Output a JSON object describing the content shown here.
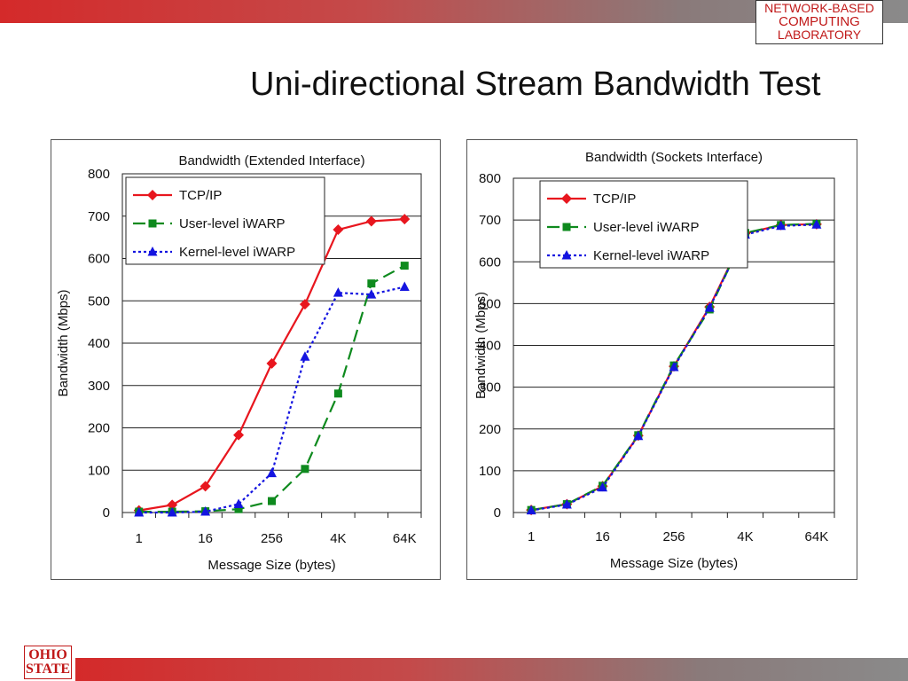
{
  "slide": {
    "title": "Uni-directional Stream Bandwidth Test",
    "lab_logo": [
      "NETWORK-BASED",
      "COMPUTING",
      "LABORATORY"
    ],
    "university_logo": [
      "OHIO",
      "STATE"
    ],
    "colors": {
      "band": "#c43a3a",
      "logo_red": "#c01818"
    }
  },
  "chart_data": [
    {
      "type": "line",
      "title": "Bandwidth (Extended Interface)",
      "xlabel": "Message Size (bytes)",
      "ylabel": "Bandwidth (Mbps)",
      "categories": [
        "1",
        "4",
        "16",
        "64",
        "256",
        "1K",
        "4K",
        "16K",
        "64K"
      ],
      "x_tick_labels": [
        "1",
        "",
        "16",
        "",
        "256",
        "",
        "4K",
        "",
        "64K"
      ],
      "y_ticks": [
        0,
        100,
        200,
        300,
        400,
        500,
        600,
        700,
        800
      ],
      "ylim": [
        0,
        800
      ],
      "grid": "horizontal",
      "legend": "top-left",
      "series": [
        {
          "name": "TCP/IP",
          "color": "#e8161e",
          "dash": "solid",
          "marker": "diamond",
          "values": [
            5,
            18,
            62,
            183,
            352,
            492,
            668,
            688,
            693
          ]
        },
        {
          "name": "User-level iWARP",
          "color": "#0e8a1e",
          "dash": "long-dash",
          "marker": "square",
          "values": [
            2,
            2,
            3,
            8,
            27,
            103,
            281,
            541,
            583
          ]
        },
        {
          "name": "Kernel-level iWARP",
          "color": "#1414e0",
          "dash": "dotted",
          "marker": "triangle",
          "values": [
            0,
            0,
            2,
            20,
            93,
            368,
            519,
            515,
            533
          ]
        }
      ]
    },
    {
      "type": "line",
      "title": "Bandwidth (Sockets Interface)",
      "xlabel": "Message Size (bytes)",
      "ylabel": "Bandwidth (Mbps)",
      "categories": [
        "1",
        "4",
        "16",
        "64",
        "256",
        "1K",
        "4K",
        "16K",
        "64K"
      ],
      "x_tick_labels": [
        "1",
        "",
        "16",
        "",
        "256",
        "",
        "4K",
        "",
        "64K"
      ],
      "y_ticks": [
        0,
        100,
        200,
        300,
        400,
        500,
        600,
        700,
        800
      ],
      "ylim": [
        0,
        800
      ],
      "grid": "horizontal",
      "legend": "top-left",
      "series": [
        {
          "name": "TCP/IP",
          "color": "#e8161e",
          "dash": "solid",
          "marker": "diamond",
          "values": [
            6,
            20,
            63,
            184,
            350,
            492,
            668,
            688,
            690
          ]
        },
        {
          "name": "User-level iWARP",
          "color": "#0e8a1e",
          "dash": "long-dash",
          "marker": "square",
          "values": [
            6,
            20,
            64,
            185,
            352,
            486,
            669,
            688,
            691
          ]
        },
        {
          "name": "Kernel-level iWARP",
          "color": "#1414e0",
          "dash": "dotted",
          "marker": "triangle",
          "values": [
            5,
            19,
            60,
            183,
            348,
            490,
            665,
            686,
            689
          ]
        }
      ]
    }
  ]
}
